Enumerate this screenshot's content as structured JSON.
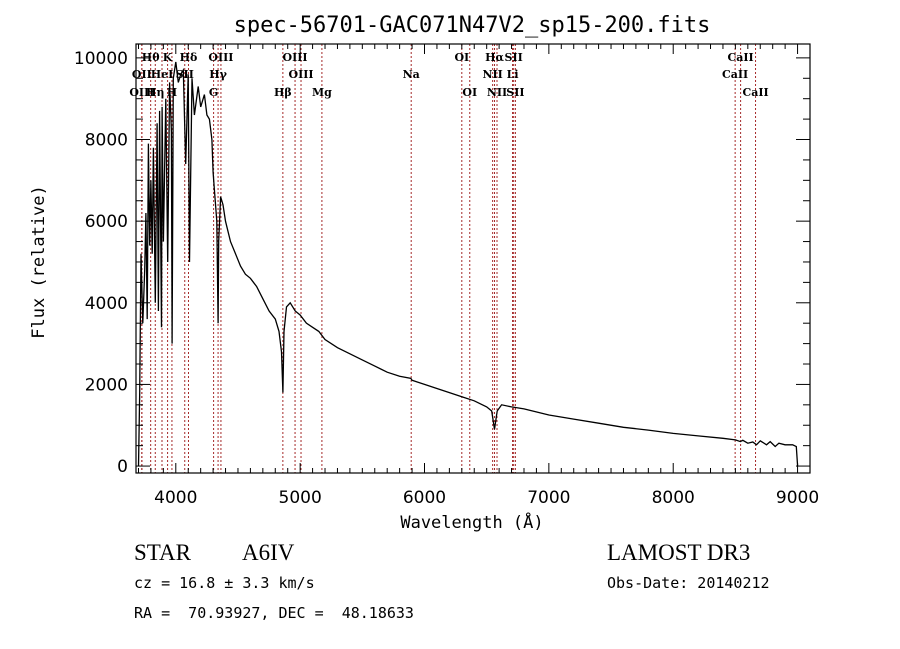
{
  "chart_data": {
    "type": "line",
    "title": "spec-56701-GAC071N47V2_sp15-200.fits",
    "xlabel": "Wavelength (Å)",
    "ylabel": "Flux (relative)",
    "xlim": [
      3680,
      9100
    ],
    "ylim": [
      -170,
      10340
    ],
    "grid": false,
    "xticks": [
      4000,
      5000,
      6000,
      7000,
      8000,
      9000
    ],
    "xtick_labels": [
      "4000",
      "5000",
      "6000",
      "7000",
      "8000",
      "9000"
    ],
    "yticks": [
      0,
      2000,
      4000,
      6000,
      8000,
      10000
    ],
    "ytick_labels": [
      "0",
      "2000",
      "4000",
      "6000",
      "8000",
      "10000"
    ],
    "series": [
      {
        "name": "spectrum",
        "color": "#000000",
        "x": [
          3700,
          3710,
          3720,
          3735,
          3750,
          3760,
          3770,
          3780,
          3790,
          3800,
          3810,
          3820,
          3835,
          3850,
          3860,
          3870,
          3885,
          3890,
          3900,
          3920,
          3935,
          3950,
          3965,
          3970,
          3980,
          4000,
          4020,
          4040,
          4060,
          4080,
          4100,
          4110,
          4130,
          4150,
          4180,
          4200,
          4230,
          4250,
          4270,
          4290,
          4300,
          4310,
          4330,
          4340,
          4345,
          4360,
          4380,
          4400,
          4440,
          4480,
          4520,
          4560,
          4600,
          4650,
          4700,
          4750,
          4800,
          4830,
          4850,
          4861,
          4870,
          4890,
          4920,
          4960,
          5000,
          5050,
          5100,
          5150,
          5200,
          5300,
          5400,
          5500,
          5600,
          5700,
          5800,
          5890,
          5900,
          6000,
          6100,
          6200,
          6300,
          6400,
          6500,
          6540,
          6563,
          6585,
          6620,
          6700,
          6800,
          7000,
          7200,
          7400,
          7600,
          7800,
          8000,
          8200,
          8400,
          8500,
          8540,
          8560,
          8600,
          8640,
          8670,
          8700,
          8750,
          8780,
          8820,
          8850,
          8900,
          8960,
          8990,
          9000
        ],
        "y": [
          0,
          1800,
          5200,
          3500,
          4800,
          6200,
          3600,
          7900,
          5400,
          7000,
          5200,
          7800,
          4000,
          8400,
          3800,
          8700,
          3400,
          8800,
          5500,
          9000,
          5000,
          9400,
          8200,
          3000,
          9500,
          9900,
          9400,
          9600,
          9700,
          7400,
          9600,
          5000,
          9500,
          8600,
          9300,
          8800,
          9100,
          8600,
          8500,
          8000,
          7200,
          6800,
          6000,
          3500,
          5500,
          6600,
          6400,
          6000,
          5500,
          5200,
          4900,
          4700,
          4600,
          4400,
          4100,
          3800,
          3600,
          3300,
          2800,
          1800,
          3300,
          3900,
          4000,
          3800,
          3700,
          3500,
          3400,
          3300,
          3100,
          2900,
          2750,
          2600,
          2450,
          2300,
          2200,
          2150,
          2100,
          2000,
          1900,
          1800,
          1700,
          1600,
          1450,
          1350,
          900,
          1350,
          1500,
          1450,
          1400,
          1250,
          1150,
          1050,
          950,
          880,
          800,
          740,
          680,
          640,
          600,
          630,
          560,
          590,
          520,
          620,
          520,
          600,
          480,
          560,
          520,
          520,
          480,
          0
        ]
      }
    ],
    "spectral_lines": [
      {
        "label": "Hθ",
        "wavelength": 3798,
        "row": 1
      },
      {
        "label": "K",
        "wavelength": 3934,
        "row": 1
      },
      {
        "label": "Hδ",
        "wavelength": 4102,
        "row": 1
      },
      {
        "label": "OIII",
        "wavelength": 4363,
        "row": 1
      },
      {
        "label": "OIII",
        "wavelength": 4959,
        "row": 1
      },
      {
        "label": "OI",
        "wavelength": 6300,
        "row": 1
      },
      {
        "label": "Hα",
        "wavelength": 6563,
        "row": 1
      },
      {
        "label": "SII",
        "wavelength": 6717,
        "row": 1
      },
      {
        "label": "CaII",
        "wavelength": 8542,
        "row": 1
      },
      {
        "label": "OII",
        "wavelength": 3727,
        "row": 2
      },
      {
        "label": "HeI",
        "wavelength": 3889,
        "row": 2
      },
      {
        "label": "SII",
        "wavelength": 4072,
        "row": 2
      },
      {
        "label": "Hγ",
        "wavelength": 4340,
        "row": 2
      },
      {
        "label": "OIII",
        "wavelength": 5007,
        "row": 2
      },
      {
        "label": "Na",
        "wavelength": 5893,
        "row": 2
      },
      {
        "label": "NII",
        "wavelength": 6548,
        "row": 2
      },
      {
        "label": "Li",
        "wavelength": 6708,
        "row": 2
      },
      {
        "label": "CaII",
        "wavelength": 8498,
        "row": 2
      },
      {
        "label": "OIII",
        "wavelength": 3727,
        "row": 3
      },
      {
        "label": "Hη",
        "wavelength": 3835,
        "row": 3
      },
      {
        "label": "H",
        "wavelength": 3969,
        "row": 3
      },
      {
        "label": "G",
        "wavelength": 4304,
        "row": 3
      },
      {
        "label": "Hβ",
        "wavelength": 4861,
        "row": 3
      },
      {
        "label": "Mg",
        "wavelength": 5175,
        "row": 3
      },
      {
        "label": "OI",
        "wavelength": 6364,
        "row": 3
      },
      {
        "label": "NII",
        "wavelength": 6583,
        "row": 3
      },
      {
        "label": "SII",
        "wavelength": 6731,
        "row": 3
      },
      {
        "label": "CaII",
        "wavelength": 8662,
        "row": 3
      }
    ],
    "line_marker_color": "#a52a2a"
  },
  "info": {
    "object_class": "STAR",
    "subclass": "A6IV",
    "redshift": "cz = 16.8 ± 3.3 km/s",
    "coords": "RA =  70.93927, DEC =  48.18633",
    "survey": "LAMOST DR3",
    "obs_date": "Obs-Date: 20140212"
  }
}
